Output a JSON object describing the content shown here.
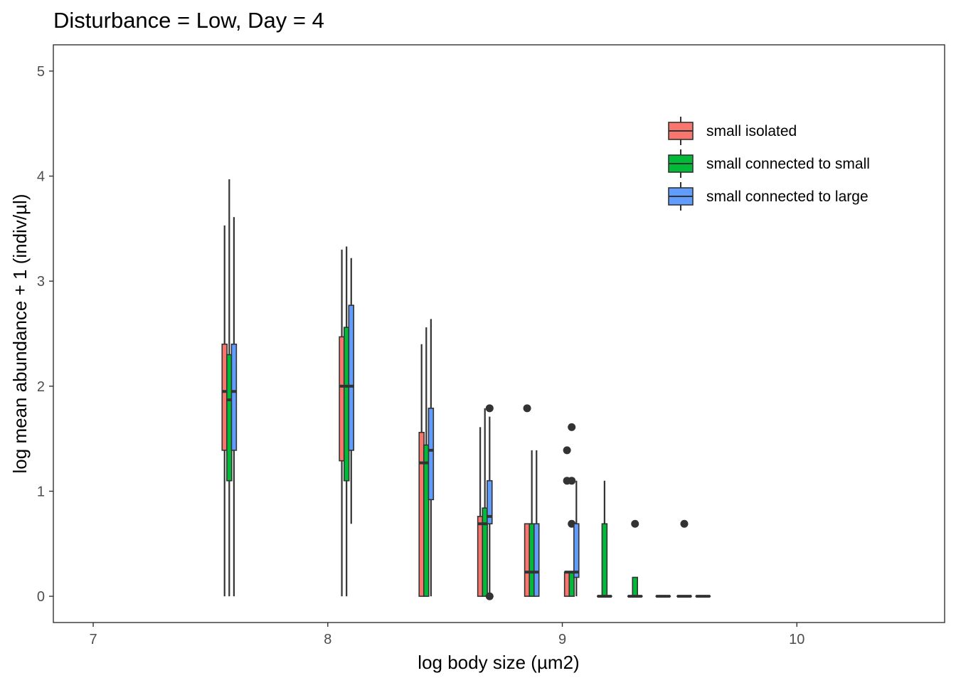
{
  "chart_data": {
    "type": "boxplot",
    "title": "Disturbance = Low, Day = 4",
    "xlabel": "log body size (µm2)",
    "ylabel": "log mean abundance + 1 (indiv/µl)",
    "xlim": [
      6.83,
      10.63
    ],
    "ylim": [
      -0.25,
      5.25
    ],
    "x_ticks": [
      7,
      8,
      9,
      10
    ],
    "x_tick_labels": [
      "7",
      "8",
      "9",
      "10"
    ],
    "y_ticks": [
      0,
      1,
      2,
      3,
      4,
      5
    ],
    "y_tick_labels": [
      "0",
      "1",
      "2",
      "3",
      "4",
      "5"
    ],
    "grid": false,
    "legend_position": "top-right (inside)",
    "box_width": 0.021,
    "series": [
      {
        "name": "small isolated",
        "color": "#F8766D",
        "boxes": [
          {
            "x": 7.56,
            "lower": 0,
            "q1": 1.39,
            "median": 1.95,
            "q3": 2.4,
            "upper": 3.53,
            "outliers": []
          },
          {
            "x": 8.06,
            "lower": 0,
            "q1": 1.29,
            "median": 2.0,
            "q3": 2.47,
            "upper": 3.3,
            "outliers": []
          },
          {
            "x": 8.4,
            "lower": 0,
            "q1": 0,
            "median": 1.27,
            "q3": 1.56,
            "upper": 2.4,
            "outliers": []
          },
          {
            "x": 8.65,
            "lower": 0,
            "q1": 0,
            "median": 0.69,
            "q3": 0.76,
            "upper": 1.61,
            "outliers": []
          },
          {
            "x": 8.85,
            "lower": 0,
            "q1": 0,
            "median": 0.23,
            "q3": 0.69,
            "upper": 0.69,
            "outliers": [
              1.79
            ]
          },
          {
            "x": 9.02,
            "lower": 0,
            "q1": 0,
            "median": 0.23,
            "q3": 0.23,
            "upper": 0.23,
            "outliers": [
              1.39,
              1.1
            ]
          },
          {
            "x": 9.16,
            "lower": 0,
            "q1": 0,
            "median": 0,
            "q3": 0,
            "upper": 0,
            "outliers": []
          },
          {
            "x": 9.29,
            "lower": 0,
            "q1": 0,
            "median": 0,
            "q3": 0,
            "upper": 0,
            "outliers": []
          },
          {
            "x": 9.41,
            "lower": 0,
            "q1": 0,
            "median": 0,
            "q3": 0,
            "upper": 0,
            "outliers": []
          },
          {
            "x": 9.5,
            "lower": 0,
            "q1": 0,
            "median": 0,
            "q3": 0,
            "upper": 0,
            "outliers": []
          },
          {
            "x": 9.58,
            "lower": 0,
            "q1": 0,
            "median": 0,
            "q3": 0,
            "upper": 0,
            "outliers": []
          }
        ]
      },
      {
        "name": "small connected to small",
        "color": "#00BA38",
        "boxes": [
          {
            "x": 7.58,
            "lower": 0,
            "q1": 1.1,
            "median": 1.87,
            "q3": 2.3,
            "upper": 3.97,
            "outliers": []
          },
          {
            "x": 8.08,
            "lower": 0,
            "q1": 1.1,
            "median": 2.0,
            "q3": 2.56,
            "upper": 3.33,
            "outliers": []
          },
          {
            "x": 8.42,
            "lower": 0,
            "q1": 0,
            "median": 1.27,
            "q3": 1.44,
            "upper": 2.56,
            "outliers": []
          },
          {
            "x": 8.67,
            "lower": 0,
            "q1": 0,
            "median": 0.69,
            "q3": 0.84,
            "upper": 1.79,
            "outliers": []
          },
          {
            "x": 8.87,
            "lower": 0,
            "q1": 0,
            "median": 0.23,
            "q3": 0.69,
            "upper": 1.39,
            "outliers": []
          },
          {
            "x": 9.04,
            "lower": 0,
            "q1": 0,
            "median": 0.23,
            "q3": 0.23,
            "upper": 0.23,
            "outliers": [
              1.61,
              1.1,
              0.69
            ]
          },
          {
            "x": 9.18,
            "lower": 0,
            "q1": 0,
            "median": 0,
            "q3": 0.69,
            "upper": 1.1,
            "outliers": []
          },
          {
            "x": 9.31,
            "lower": 0,
            "q1": 0,
            "median": 0,
            "q3": 0.18,
            "upper": 0.18,
            "outliers": [
              0.69
            ]
          },
          {
            "x": 9.43,
            "lower": 0,
            "q1": 0,
            "median": 0,
            "q3": 0,
            "upper": 0,
            "outliers": []
          },
          {
            "x": 9.52,
            "lower": 0,
            "q1": 0,
            "median": 0,
            "q3": 0,
            "upper": 0,
            "outliers": [
              0.69
            ]
          },
          {
            "x": 9.6,
            "lower": 0,
            "q1": 0,
            "median": 0,
            "q3": 0,
            "upper": 0,
            "outliers": []
          }
        ]
      },
      {
        "name": "small connected to large",
        "color": "#619CFF",
        "boxes": [
          {
            "x": 7.6,
            "lower": 0,
            "q1": 1.39,
            "median": 1.95,
            "q3": 2.4,
            "upper": 3.61,
            "outliers": []
          },
          {
            "x": 8.1,
            "lower": 0.69,
            "q1": 1.39,
            "median": 2.0,
            "q3": 2.77,
            "upper": 3.22,
            "outliers": []
          },
          {
            "x": 8.44,
            "lower": 0,
            "q1": 0.92,
            "median": 1.39,
            "q3": 1.79,
            "upper": 2.64,
            "outliers": []
          },
          {
            "x": 8.69,
            "lower": 0,
            "q1": 0.69,
            "median": 0.76,
            "q3": 1.1,
            "upper": 1.71,
            "outliers": [
              1.79,
              0
            ]
          },
          {
            "x": 8.89,
            "lower": 0,
            "q1": 0,
            "median": 0.23,
            "q3": 0.69,
            "upper": 1.39,
            "outliers": []
          },
          {
            "x": 9.06,
            "lower": 0,
            "q1": 0.18,
            "median": 0.23,
            "q3": 0.69,
            "upper": 1.1,
            "outliers": []
          },
          {
            "x": 9.2,
            "lower": 0,
            "q1": 0,
            "median": 0,
            "q3": 0,
            "upper": 0,
            "outliers": []
          },
          {
            "x": 9.33,
            "lower": 0,
            "q1": 0,
            "median": 0,
            "q3": 0,
            "upper": 0,
            "outliers": []
          },
          {
            "x": 9.45,
            "lower": 0,
            "q1": 0,
            "median": 0,
            "q3": 0,
            "upper": 0,
            "outliers": []
          },
          {
            "x": 9.54,
            "lower": 0,
            "q1": 0,
            "median": 0,
            "q3": 0,
            "upper": 0,
            "outliers": []
          },
          {
            "x": 9.62,
            "lower": 0,
            "q1": 0,
            "median": 0,
            "q3": 0,
            "upper": 0,
            "outliers": []
          }
        ]
      }
    ]
  }
}
